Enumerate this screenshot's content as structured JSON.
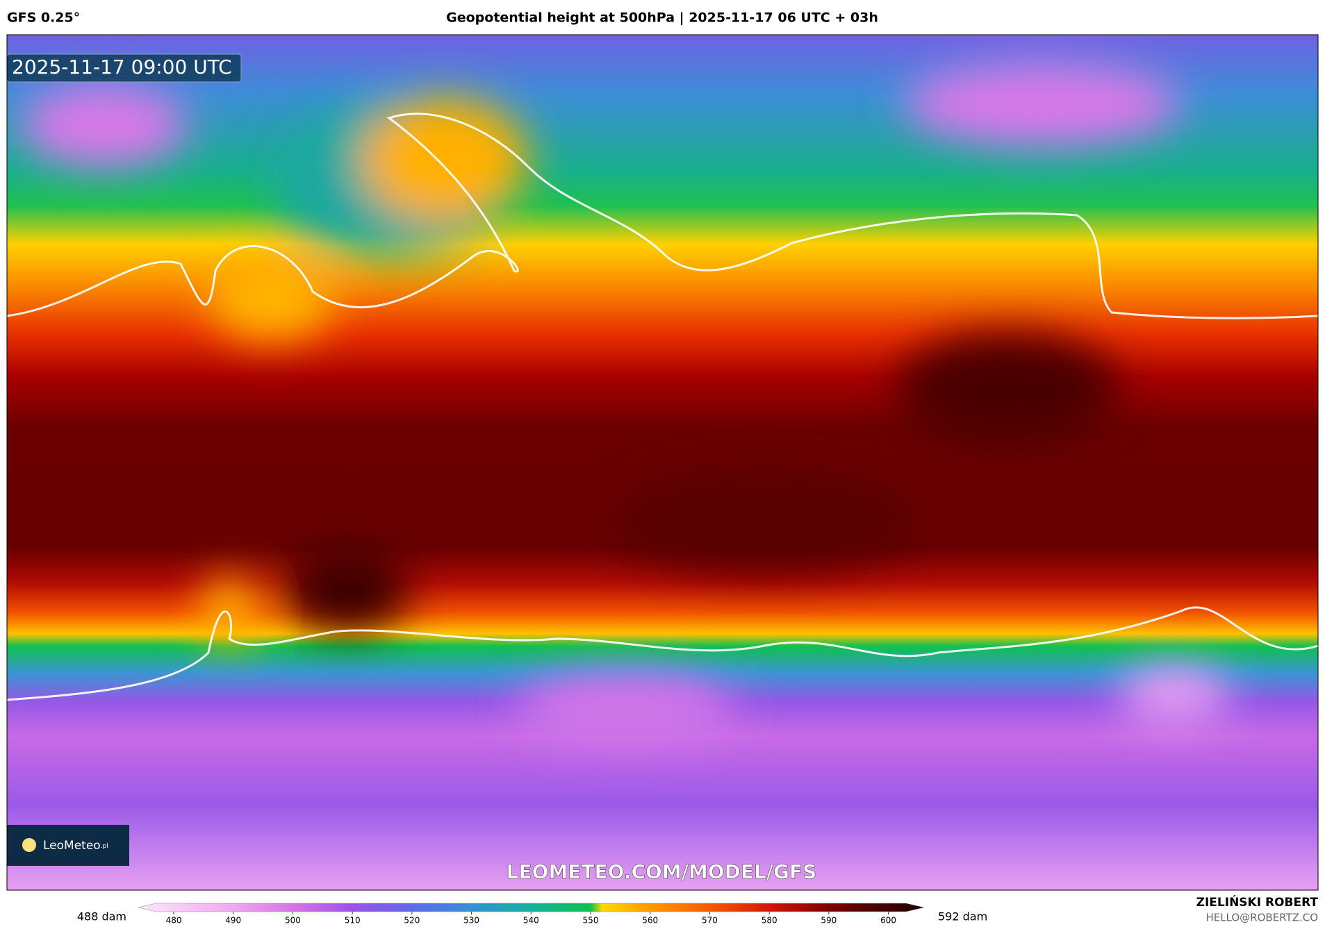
{
  "header": {
    "model": "GFS 0.25°",
    "title": "Geopotential height at 500hPa | 2025-11-17 06 UTC + 03h"
  },
  "map": {
    "timestamp": "2025-11-17 09:00 UTC",
    "url": "LEOMETEO.COM/MODEL/GFS",
    "logo": "LeoMeteo",
    "logo_suffix": ".pl"
  },
  "colorbar": {
    "min_label": "488 dam",
    "max_label": "592 dam",
    "lim": [
      474,
      606
    ],
    "ticks": [
      480,
      490,
      500,
      510,
      520,
      530,
      540,
      550,
      560,
      570,
      580,
      590,
      600
    ],
    "colormap": [
      {
        "value": 474,
        "color": "#fde8fb"
      },
      {
        "value": 490,
        "color": "#eea8f0"
      },
      {
        "value": 500,
        "color": "#d774e6"
      },
      {
        "value": 510,
        "color": "#9d52e6"
      },
      {
        "value": 520,
        "color": "#5d6ae6"
      },
      {
        "value": 530,
        "color": "#3890d4"
      },
      {
        "value": 540,
        "color": "#16b09a"
      },
      {
        "value": 550,
        "color": "#10c050"
      },
      {
        "value": 552,
        "color": "#ffd800"
      },
      {
        "value": 560,
        "color": "#ff9a00"
      },
      {
        "value": 570,
        "color": "#f55a00"
      },
      {
        "value": 580,
        "color": "#d01808"
      },
      {
        "value": 590,
        "color": "#7a0000"
      },
      {
        "value": 606,
        "color": "#1a0000"
      }
    ]
  },
  "footer": {
    "author": "ZIELIŃSKI ROBERT",
    "email": "HELLO@ROBERTZ.CO"
  }
}
